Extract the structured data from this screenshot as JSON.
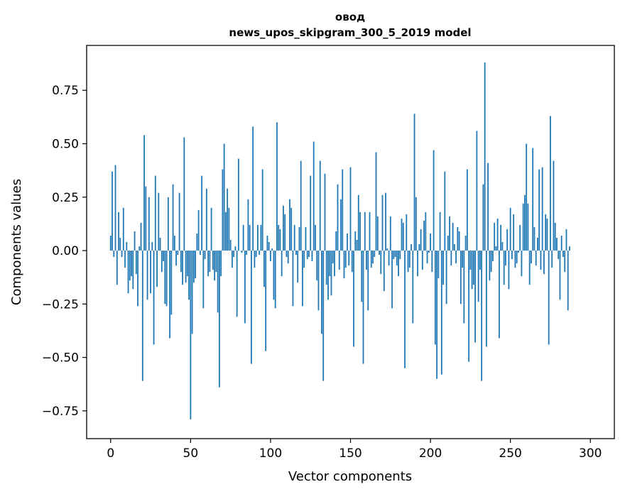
{
  "chart_data": {
    "type": "bar",
    "title_line1": "овод",
    "title_line2": "news_upos_skipgram_300_5_2019 model",
    "xlabel": "Vector components",
    "ylabel": "Components values",
    "xlim": [
      -15,
      315
    ],
    "ylim": [
      -0.88,
      0.96
    ],
    "x_ticks": [
      0,
      50,
      100,
      150,
      200,
      250,
      300
    ],
    "x_tick_labels": [
      "0",
      "50",
      "100",
      "150",
      "200",
      "250",
      "300"
    ],
    "y_ticks": [
      -0.75,
      -0.5,
      -0.25,
      0.0,
      0.25,
      0.5,
      0.75
    ],
    "y_tick_labels": [
      "−0.75",
      "−0.50",
      "−0.25",
      "0.00",
      "0.25",
      "0.50",
      "0.75"
    ],
    "bar_color": "#1f77b4",
    "values": [
      0.07,
      0.37,
      -0.03,
      0.4,
      -0.16,
      0.18,
      0.06,
      -0.03,
      0.2,
      -0.08,
      0.04,
      -0.2,
      -0.14,
      -0.12,
      -0.18,
      0.09,
      -0.11,
      -0.26,
      0.02,
      0.13,
      -0.61,
      0.54,
      0.3,
      -0.23,
      0.25,
      -0.2,
      0.04,
      -0.44,
      0.35,
      -0.17,
      0.27,
      0.06,
      -0.1,
      -0.05,
      -0.25,
      -0.26,
      0.25,
      -0.41,
      -0.3,
      0.31,
      0.07,
      -0.07,
      -0.02,
      0.27,
      -0.1,
      -0.16,
      0.53,
      -0.15,
      -0.12,
      -0.23,
      -0.79,
      -0.39,
      -0.15,
      -0.13,
      0.08,
      0.19,
      -0.02,
      0.35,
      -0.27,
      -0.04,
      0.29,
      -0.12,
      -0.1,
      0.2,
      -0.09,
      -0.14,
      -0.1,
      -0.29,
      -0.64,
      -0.12,
      0.38,
      0.5,
      0.18,
      0.29,
      0.2,
      0.05,
      -0.08,
      -0.03,
      0.02,
      -0.31,
      0.43,
      0.0,
      -0.01,
      0.12,
      -0.34,
      -0.02,
      0.24,
      0.12,
      -0.53,
      0.58,
      -0.08,
      -0.03,
      0.12,
      -0.02,
      0.12,
      0.38,
      -0.17,
      -0.47,
      0.07,
      0.04,
      -0.05,
      0.01,
      -0.23,
      -0.27,
      0.6,
      0.12,
      0.1,
      -0.12,
      0.21,
      0.17,
      -0.03,
      -0.06,
      0.24,
      0.2,
      -0.26,
      0.12,
      -0.02,
      -0.15,
      0.11,
      0.42,
      -0.26,
      -0.08,
      0.11,
      -0.04,
      -0.03,
      0.35,
      -0.05,
      0.51,
      0.12,
      -0.14,
      -0.28,
      0.42,
      -0.39,
      -0.61,
      0.36,
      -0.16,
      -0.23,
      -0.12,
      -0.21,
      -0.06,
      -0.12,
      0.09,
      0.31,
      -0.09,
      0.24,
      0.38,
      -0.13,
      -0.08,
      0.08,
      -0.07,
      0.39,
      -0.1,
      -0.45,
      0.09,
      0.05,
      0.26,
      0.18,
      -0.24,
      -0.53,
      0.18,
      -0.09,
      -0.28,
      0.18,
      -0.08,
      -0.06,
      -0.03,
      0.46,
      0.16,
      -0.02,
      -0.11,
      0.26,
      -0.19,
      0.27,
      0.01,
      -0.07,
      0.16,
      -0.27,
      -0.04,
      -0.03,
      -0.07,
      -0.12,
      -0.04,
      0.15,
      0.13,
      -0.55,
      0.17,
      -0.1,
      -0.08,
      0.03,
      -0.34,
      0.64,
      0.25,
      -0.12,
      0.03,
      0.1,
      -0.09,
      0.14,
      0.18,
      -0.06,
      -0.01,
      0.08,
      -0.1,
      0.47,
      -0.44,
      -0.6,
      -0.13,
      0.18,
      -0.58,
      -0.16,
      0.37,
      -0.25,
      0.07,
      0.16,
      -0.07,
      0.13,
      0.03,
      -0.06,
      0.11,
      0.09,
      -0.25,
      -0.08,
      -0.34,
      0.07,
      0.38,
      -0.52,
      -0.09,
      -0.18,
      -0.16,
      -0.43,
      0.56,
      -0.24,
      -0.09,
      -0.61,
      0.31,
      0.88,
      -0.45,
      0.41,
      -0.14,
      -0.1,
      -0.05,
      0.13,
      0.02,
      0.15,
      -0.41,
      0.12,
      0.04,
      -0.16,
      -0.07,
      0.1,
      -0.18,
      0.2,
      -0.04,
      0.17,
      -0.08,
      -0.06,
      -0.01,
      0.12,
      -0.12,
      0.22,
      0.26,
      0.5,
      0.22,
      -0.16,
      -0.06,
      0.48,
      0.11,
      -0.07,
      0.06,
      0.38,
      -0.09,
      0.39,
      -0.11,
      0.17,
      0.15,
      -0.44,
      0.63,
      -0.08,
      0.42,
      0.13,
      0.06,
      -0.04,
      -0.23,
      0.07,
      -0.03,
      -0.1,
      0.1,
      -0.28,
      0.02
    ]
  }
}
